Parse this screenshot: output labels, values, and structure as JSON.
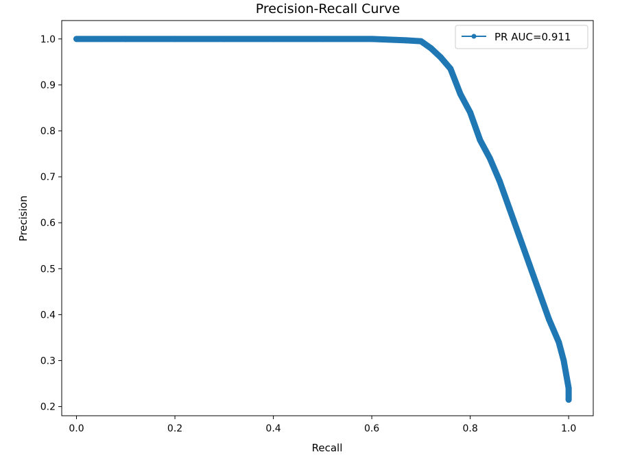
{
  "chart_data": {
    "type": "line",
    "title": "Precision-Recall Curve",
    "xlabel": "Recall",
    "ylabel": "Precision",
    "xlim": [
      -0.03,
      1.05
    ],
    "ylim": [
      0.18,
      1.04
    ],
    "grid": false,
    "legend": {
      "placement": "top-right",
      "entries": [
        "PR AUC=0.911"
      ]
    },
    "x_ticks": [
      {
        "value": 0.0,
        "label": "0.0"
      },
      {
        "value": 0.2,
        "label": "0.2"
      },
      {
        "value": 0.4,
        "label": "0.4"
      },
      {
        "value": 0.6,
        "label": "0.6"
      },
      {
        "value": 0.8,
        "label": "0.8"
      },
      {
        "value": 1.0,
        "label": "1.0"
      }
    ],
    "y_ticks": [
      {
        "value": 0.2,
        "label": "0.2"
      },
      {
        "value": 0.3,
        "label": "0.3"
      },
      {
        "value": 0.4,
        "label": "0.4"
      },
      {
        "value": 0.5,
        "label": "0.5"
      },
      {
        "value": 0.6,
        "label": "0.6"
      },
      {
        "value": 0.7,
        "label": "0.7"
      },
      {
        "value": 0.8,
        "label": "0.8"
      },
      {
        "value": 0.9,
        "label": "0.9"
      },
      {
        "value": 1.0,
        "label": "1.0"
      }
    ],
    "series": [
      {
        "name": "PR AUC=0.911",
        "color": "#1f77b4",
        "marker": "point",
        "x": [
          0.0,
          0.05,
          0.1,
          0.2,
          0.3,
          0.4,
          0.5,
          0.6,
          0.67,
          0.7,
          0.72,
          0.74,
          0.76,
          0.78,
          0.8,
          0.82,
          0.84,
          0.86,
          0.88,
          0.9,
          0.92,
          0.94,
          0.96,
          0.98,
          0.99,
          1.0,
          1.0
        ],
        "y": [
          1.0,
          1.0,
          1.0,
          1.0,
          1.0,
          1.0,
          1.0,
          1.0,
          0.997,
          0.995,
          0.98,
          0.96,
          0.935,
          0.88,
          0.84,
          0.78,
          0.74,
          0.69,
          0.63,
          0.57,
          0.51,
          0.45,
          0.39,
          0.34,
          0.3,
          0.24,
          0.215
        ]
      }
    ]
  }
}
